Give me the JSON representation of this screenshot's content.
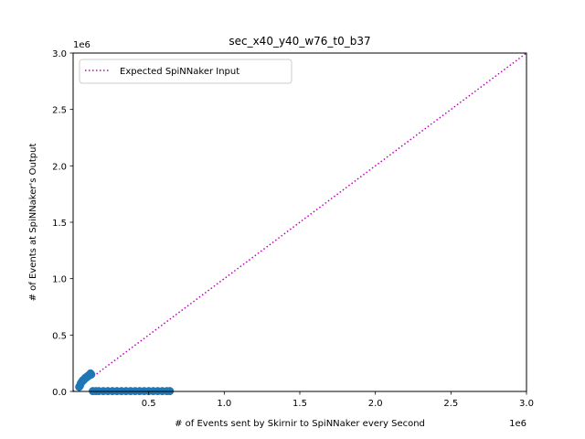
{
  "chart_data": {
    "type": "scatter",
    "title": "sec_x40_y40_w76_t0_b37",
    "xlabel": "# of Events sent by Skirnir to SpiNNaker every Second",
    "ylabel": "# of Events at SpiNNaker's Output",
    "x_scale_label": "1e6",
    "y_scale_label": "1e6",
    "xlim": [
      0,
      3.0
    ],
    "ylim": [
      0,
      3.0
    ],
    "x_ticks": [
      "0.5",
      "1.0",
      "1.5",
      "2.0",
      "2.5",
      "3.0"
    ],
    "y_ticks": [
      "0.0",
      "0.5",
      "1.0",
      "1.5",
      "2.0",
      "2.5",
      "3.0"
    ],
    "grid": false,
    "legend_position": "top-left",
    "series": [
      {
        "name": "Expected SpiNNaker Input",
        "kind": "line",
        "style": "dotted",
        "color": "#bf00bf",
        "x": [
          0,
          3.0
        ],
        "y": [
          0,
          3.0
        ]
      },
      {
        "kind": "scatter",
        "color": "#1f77b4",
        "x": [
          0.04,
          0.045,
          0.05,
          0.055,
          0.06,
          0.065,
          0.07,
          0.075,
          0.08,
          0.085,
          0.09,
          0.095,
          0.1,
          0.105,
          0.11,
          0.115,
          0.12,
          0.13,
          0.15,
          0.17,
          0.2,
          0.23,
          0.26,
          0.29,
          0.32,
          0.35,
          0.38,
          0.41,
          0.44,
          0.47,
          0.5,
          0.53,
          0.56,
          0.59,
          0.62,
          0.64
        ],
        "y": [
          0.04,
          0.05,
          0.07,
          0.08,
          0.09,
          0.1,
          0.1,
          0.11,
          0.12,
          0.12,
          0.13,
          0.13,
          0.14,
          0.14,
          0.15,
          0.16,
          0.15,
          0.003,
          0.003,
          0.003,
          0.003,
          0.003,
          0.003,
          0.003,
          0.003,
          0.003,
          0.003,
          0.003,
          0.003,
          0.003,
          0.003,
          0.003,
          0.003,
          0.003,
          0.003,
          0.003
        ]
      }
    ]
  }
}
